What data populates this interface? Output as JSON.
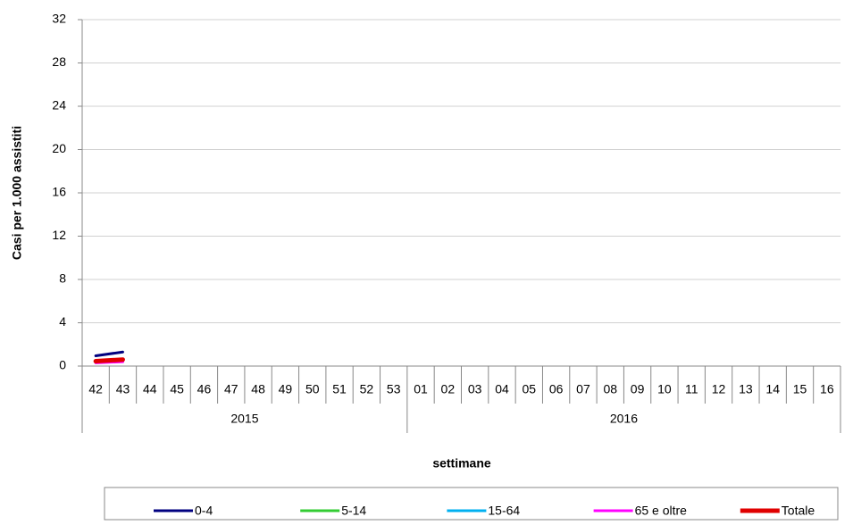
{
  "chart_data": {
    "type": "line",
    "y_label": "Casi per 1.000 assistiti",
    "x_label": "settimane",
    "categories": [
      "42",
      "43",
      "44",
      "45",
      "46",
      "47",
      "48",
      "49",
      "50",
      "51",
      "52",
      "53",
      "01",
      "02",
      "03",
      "04",
      "05",
      "06",
      "07",
      "08",
      "09",
      "10",
      "11",
      "12",
      "13",
      "14",
      "15",
      "16"
    ],
    "x_groups": [
      "2015",
      "2016"
    ],
    "ylim": [
      0,
      32
    ],
    "yticks": [
      0,
      4,
      8,
      12,
      16,
      20,
      24,
      28,
      32
    ],
    "grid": true,
    "legend": "bottom",
    "series": [
      {
        "name": "0-4",
        "color": "#000080",
        "values": [
          0.95,
          1.3,
          null,
          null,
          null,
          null,
          null,
          null,
          null,
          null,
          null,
          null,
          null,
          null,
          null,
          null,
          null,
          null,
          null,
          null,
          null,
          null,
          null,
          null,
          null,
          null,
          null,
          null
        ]
      },
      {
        "name": "5-14",
        "color": "#33cc33",
        "values": [
          0.35,
          0.45,
          null,
          null,
          null,
          null,
          null,
          null,
          null,
          null,
          null,
          null,
          null,
          null,
          null,
          null,
          null,
          null,
          null,
          null,
          null,
          null,
          null,
          null,
          null,
          null,
          null,
          null
        ]
      },
      {
        "name": "15-64",
        "color": "#00b0f0",
        "values": [
          0.4,
          0.5,
          null,
          null,
          null,
          null,
          null,
          null,
          null,
          null,
          null,
          null,
          null,
          null,
          null,
          null,
          null,
          null,
          null,
          null,
          null,
          null,
          null,
          null,
          null,
          null,
          null,
          null
        ]
      },
      {
        "name": "65 e oltre",
        "color": "#ff00ff",
        "values": [
          0.3,
          0.4,
          null,
          null,
          null,
          null,
          null,
          null,
          null,
          null,
          null,
          null,
          null,
          null,
          null,
          null,
          null,
          null,
          null,
          null,
          null,
          null,
          null,
          null,
          null,
          null,
          null,
          null
        ]
      },
      {
        "name": "Totale",
        "color": "#e00000",
        "values": [
          0.45,
          0.6,
          null,
          null,
          null,
          null,
          null,
          null,
          null,
          null,
          null,
          null,
          null,
          null,
          null,
          null,
          null,
          null,
          null,
          null,
          null,
          null,
          null,
          null,
          null,
          null,
          null,
          null
        ]
      }
    ]
  }
}
